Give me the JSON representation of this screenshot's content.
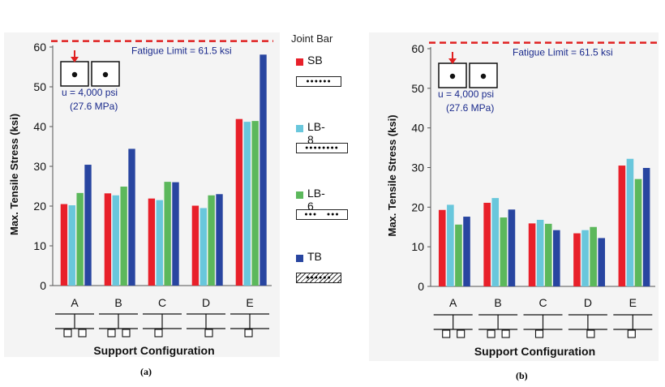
{
  "legend": {
    "title": "Joint Bar",
    "items": [
      {
        "name": "SB",
        "color": "#e8202a"
      },
      {
        "name": "LB-8",
        "color": "#69c7dc"
      },
      {
        "name": "LB-6",
        "color": "#5cb85c"
      },
      {
        "name": "TB",
        "color": "#2845a0"
      }
    ]
  },
  "captions": [
    "(a)",
    "(b)"
  ],
  "chart_data": [
    {
      "type": "bar",
      "ylabel": "Max. Tensile Stress (ksi)",
      "xlabel": "Support Configuration",
      "categories": [
        "A",
        "B",
        "C",
        "D",
        "E"
      ],
      "ylim": [
        0,
        60
      ],
      "yticks": [
        0,
        10,
        20,
        30,
        40,
        50,
        60
      ],
      "reference_line": {
        "value": 61.5,
        "label": "Fatigue Limit = 61.5 ksi",
        "color": "#e02020"
      },
      "load_note": {
        "line1": "u = 4,000 psi",
        "line2": "(27.6 MPa)"
      },
      "series": [
        {
          "name": "SB",
          "values": [
            20.5,
            23.2,
            21.9,
            20.1,
            41.9
          ]
        },
        {
          "name": "LB-8",
          "values": [
            20.2,
            22.7,
            21.5,
            19.5,
            41.2
          ]
        },
        {
          "name": "LB-6",
          "values": [
            23.3,
            24.9,
            26.1,
            22.7,
            41.4
          ]
        },
        {
          "name": "TB",
          "values": [
            30.4,
            34.4,
            26.0,
            23.0,
            58.1
          ]
        }
      ],
      "support_boxes": [
        2,
        2,
        1,
        1,
        1
      ],
      "caption": "(a)"
    },
    {
      "type": "bar",
      "ylabel": "Max. Tensile Stress (ksi)",
      "xlabel": "Support Configuration",
      "categories": [
        "A",
        "B",
        "C",
        "D",
        "E"
      ],
      "ylim": [
        0,
        60
      ],
      "yticks": [
        0,
        10,
        20,
        30,
        40,
        50,
        60
      ],
      "reference_line": {
        "value": 61.5,
        "label": "Fatigue Limit = 61.5 ksi",
        "color": "#e02020"
      },
      "load_note": {
        "line1": "u = 4,000 psi",
        "line2": "(27.6 MPa)"
      },
      "series": [
        {
          "name": "SB",
          "values": [
            19.3,
            21.1,
            15.9,
            13.4,
            30.5
          ]
        },
        {
          "name": "LB-8",
          "values": [
            20.6,
            22.3,
            16.8,
            14.2,
            32.2
          ]
        },
        {
          "name": "LB-6",
          "values": [
            15.6,
            17.4,
            15.8,
            15.0,
            27.1
          ]
        },
        {
          "name": "TB",
          "values": [
            17.6,
            19.4,
            14.2,
            12.2,
            29.9
          ]
        }
      ],
      "support_boxes": [
        2,
        2,
        1,
        1,
        1
      ],
      "caption": "(b)"
    }
  ]
}
